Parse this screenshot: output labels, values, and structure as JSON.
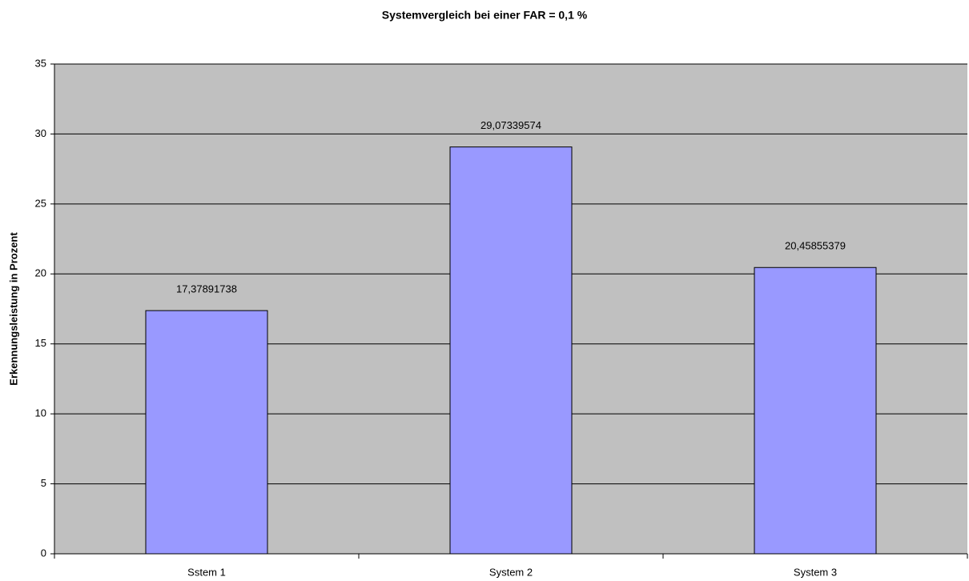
{
  "chart_data": {
    "type": "bar",
    "title": "Systemvergleich bei einer FAR = 0,1 %",
    "y_label": "Erkennungsleistung in Prozent",
    "categories": [
      "Sstem 1",
      "System 2",
      "System 3"
    ],
    "values": [
      17.37891738,
      29.07339574,
      20.45855379
    ],
    "value_labels": [
      "17,37891738",
      "29,07339574",
      "20,45855379"
    ],
    "color": "#9999ff",
    "ylim": [
      0,
      35
    ],
    "yticks": [
      0,
      5,
      10,
      15,
      20,
      25,
      30,
      35
    ],
    "grid": true
  }
}
